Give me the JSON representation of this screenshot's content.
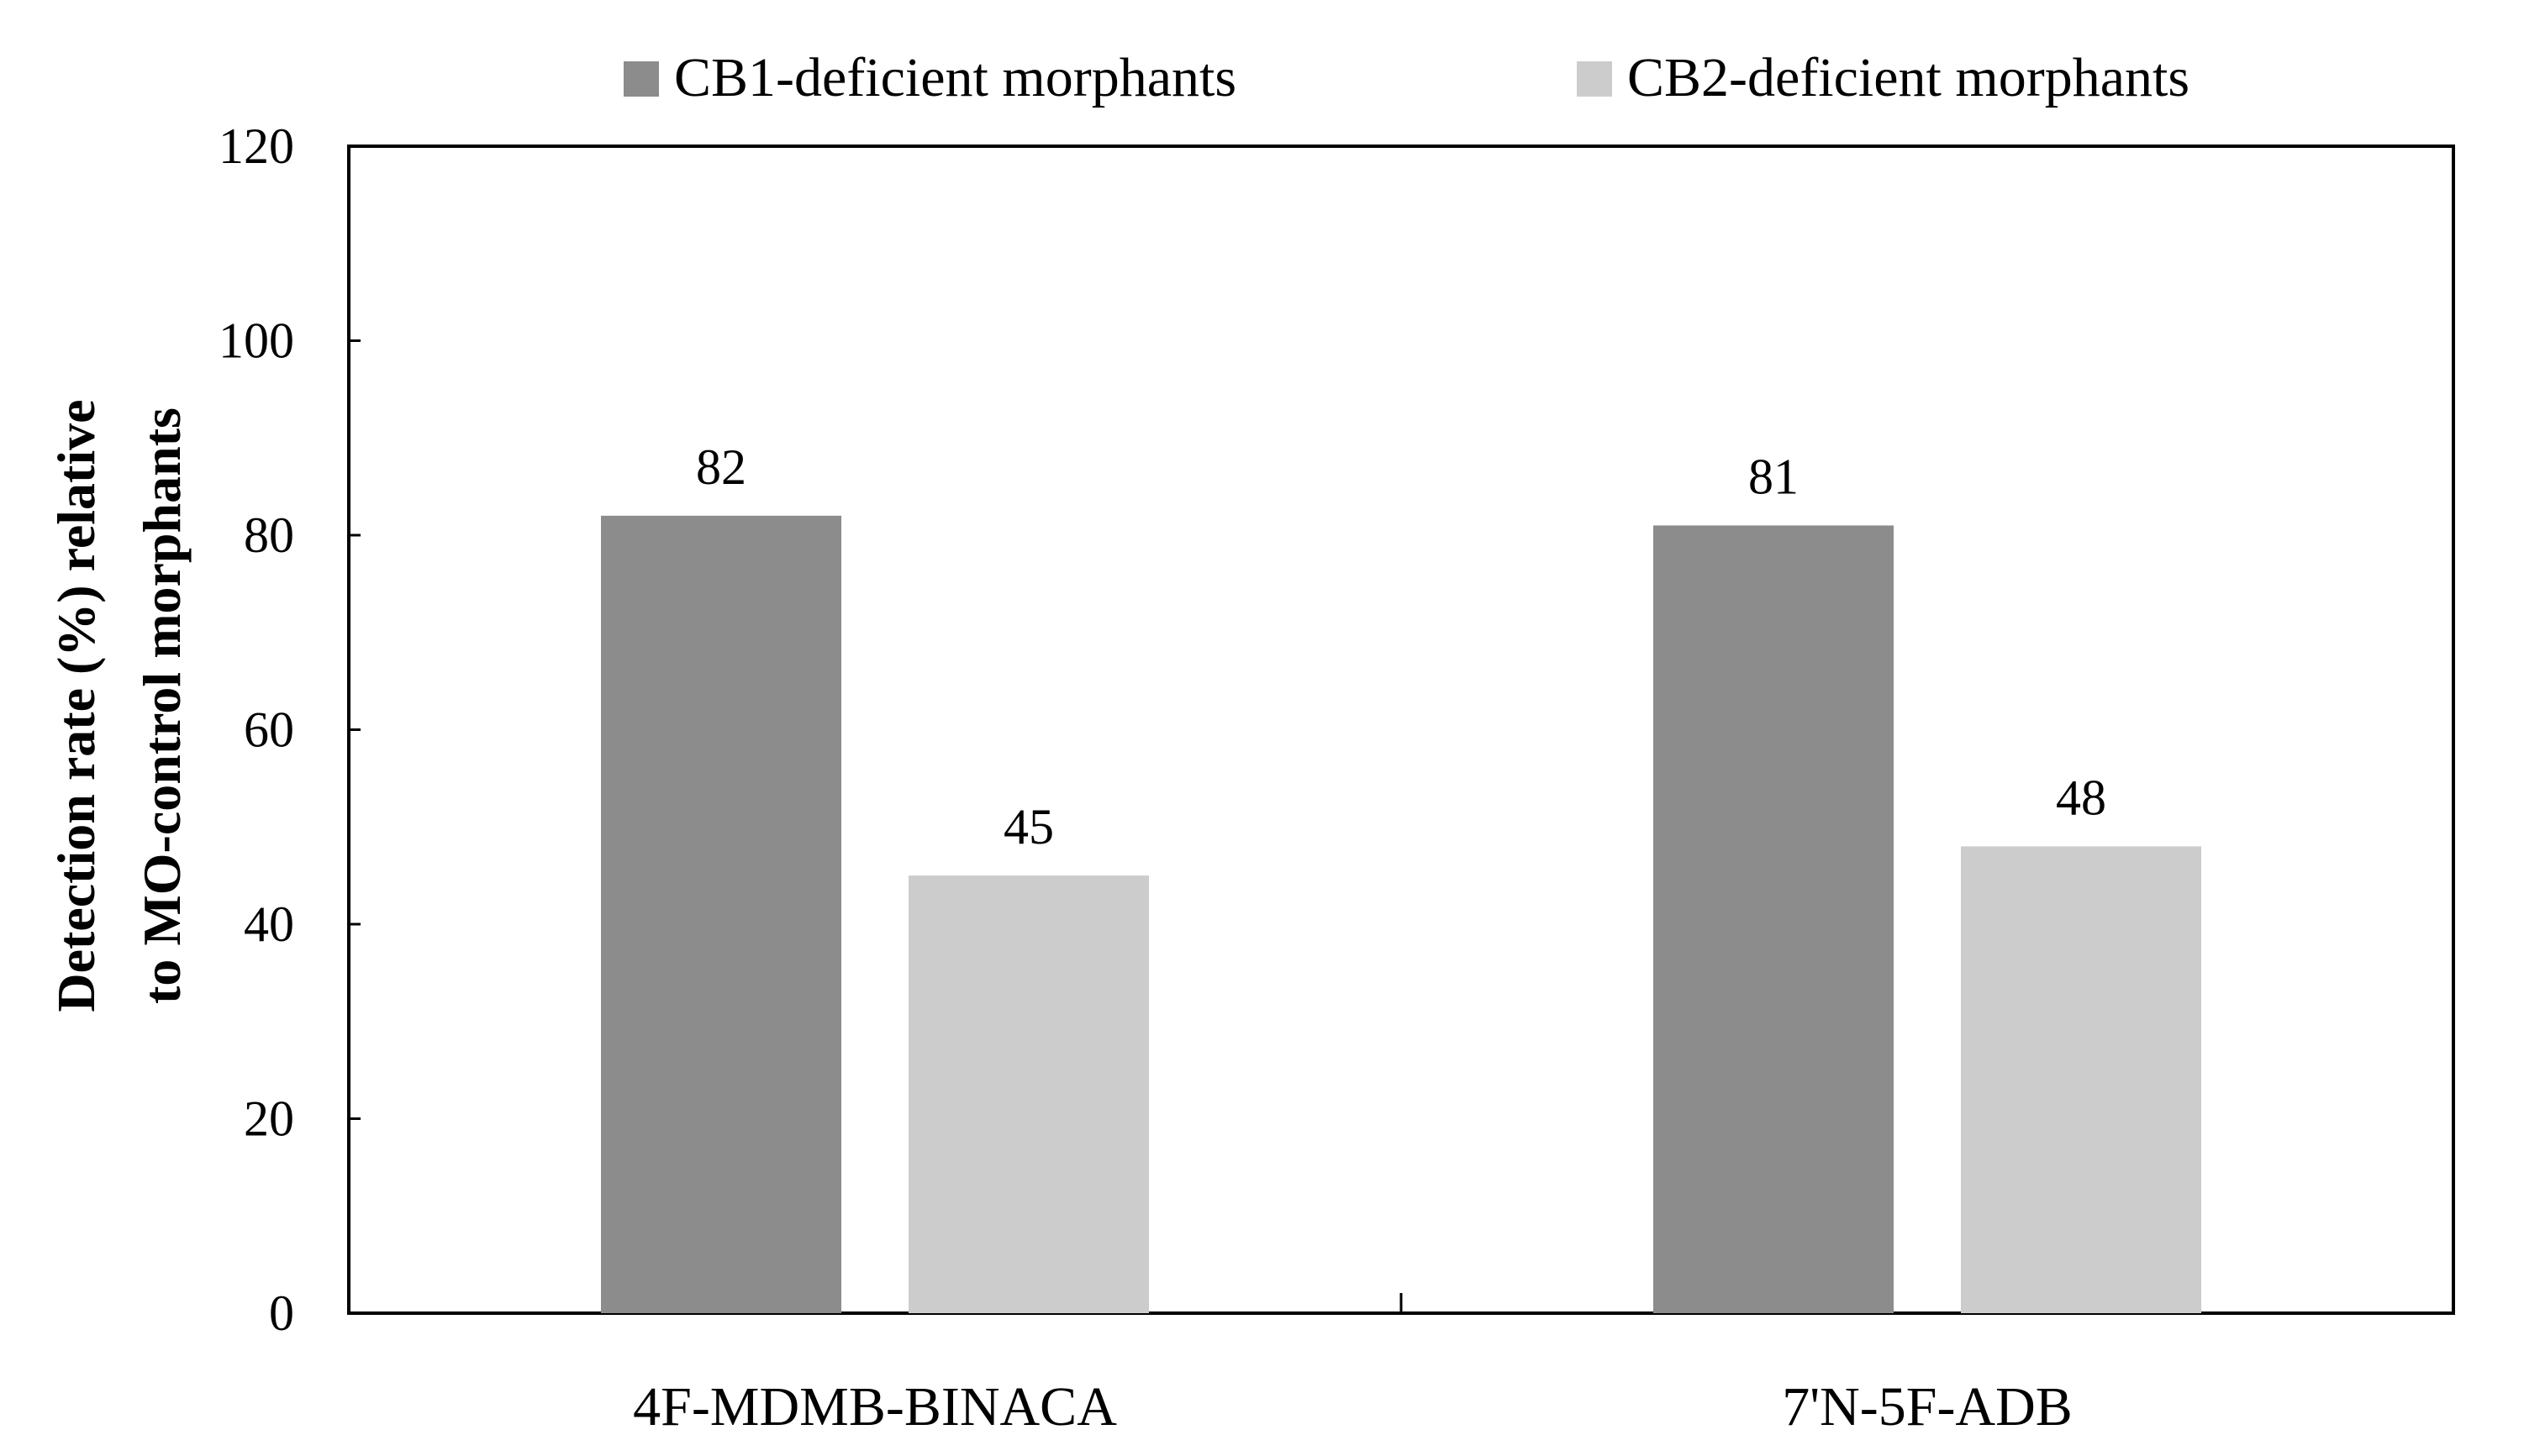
{
  "chart_data": {
    "type": "bar",
    "title": "",
    "xlabel": "",
    "ylabel_line1": "Detection rate  (%) relative",
    "ylabel_line2": "to MO-control morphants",
    "categories": [
      "4F-MDMB-BINACA",
      "7'N-5F-ADB"
    ],
    "series": [
      {
        "name": "CB1-deficient morphants",
        "color": "#8c8c8c",
        "values": [
          82,
          81
        ],
        "labels": [
          "82",
          "81"
        ]
      },
      {
        "name": "CB2-deficient morphants",
        "color": "#cccccc",
        "values": [
          45,
          48
        ],
        "labels": [
          "45",
          "48"
        ]
      }
    ],
    "ylim": [
      0,
      120
    ],
    "yticks": [
      "0",
      "20",
      "40",
      "60",
      "80",
      "100",
      "120"
    ],
    "grid": false,
    "legend_position": "top"
  }
}
